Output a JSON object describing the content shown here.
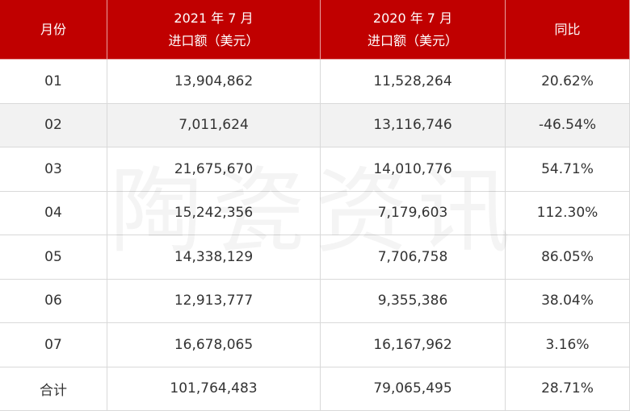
{
  "table": {
    "header": [
      [
        "月份"
      ],
      [
        "2021 年 7 月",
        "进口额（美元）"
      ],
      [
        "2020 年 7 月",
        "进口额（美元）"
      ],
      [
        "同比"
      ]
    ],
    "rows": [
      [
        "01",
        "13,904,862",
        "11,528,264",
        "20.62%"
      ],
      [
        "02",
        "7,011,624",
        "13,116,746",
        "-46.54%"
      ],
      [
        "03",
        "21,675,670",
        "14,010,776",
        "54.71%"
      ],
      [
        "04",
        "15,242,356",
        "7,179,603",
        "112.30%"
      ],
      [
        "05",
        "14,338,129",
        "7,706,758",
        "86.05%"
      ],
      [
        "06",
        "12,913,777",
        "9,355,386",
        "38.04%"
      ],
      [
        "07",
        "16,678,065",
        "16,167,962",
        "3.16%"
      ],
      [
        "合计",
        "101,764,483",
        "79,065,495",
        "28.71%"
      ]
    ]
  },
  "watermark": "陶瓷资讯"
}
